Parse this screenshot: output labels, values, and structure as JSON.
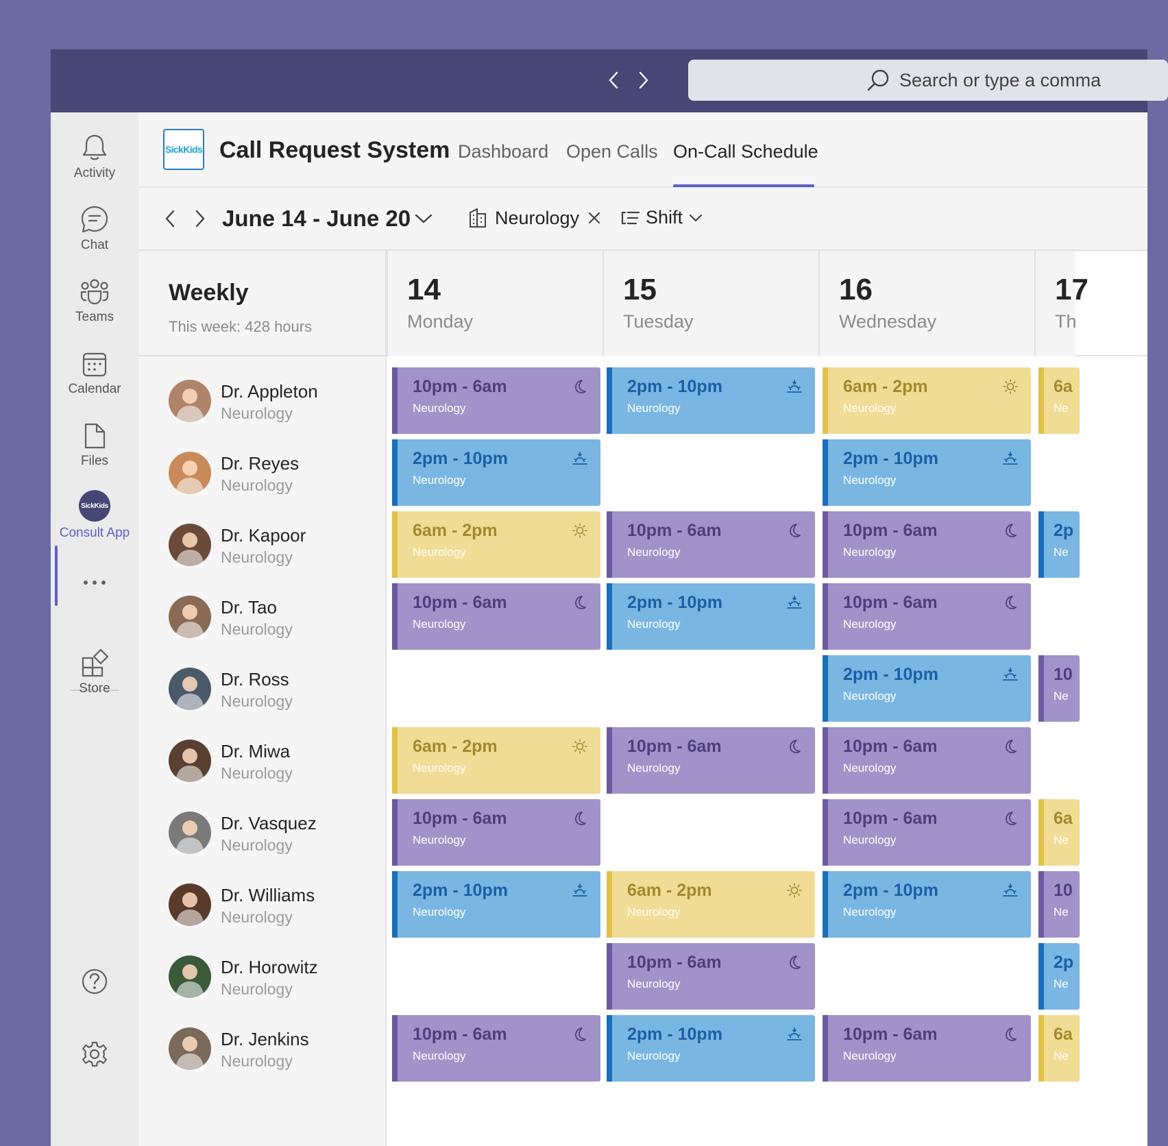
{
  "search": {
    "placeholder": "Search or type a comma"
  },
  "rail": {
    "items": [
      {
        "label": "Activity",
        "icon": "bell-icon"
      },
      {
        "label": "Chat",
        "icon": "chat-icon"
      },
      {
        "label": "Teams",
        "icon": "teams-icon"
      },
      {
        "label": "Calendar",
        "icon": "calendar-icon"
      },
      {
        "label": "Files",
        "icon": "file-icon"
      },
      {
        "label": "Consult App",
        "icon": "sickkids-icon",
        "badge": "SickKids"
      },
      {
        "label": "Store",
        "icon": "store-icon"
      }
    ]
  },
  "app": {
    "logo_text": "SickKids",
    "title": "Call Request System",
    "tabs": [
      {
        "label": "Dashboard"
      },
      {
        "label": "Open Calls"
      },
      {
        "label": "On-Call Schedule",
        "active": true
      }
    ]
  },
  "toolbar": {
    "date_range": "June 14 - June 20",
    "filter_department": "Neurology",
    "group_by": "Shift"
  },
  "grid": {
    "weekly_title": "Weekly",
    "weekly_subtitle": "This week: 428 hours",
    "days": [
      {
        "num": "14",
        "name": "Monday"
      },
      {
        "num": "15",
        "name": "Tuesday"
      },
      {
        "num": "16",
        "name": "Wednesday"
      },
      {
        "num": "17",
        "name": "Th"
      }
    ]
  },
  "people": [
    {
      "name": "Dr. Appleton",
      "dept": "Neurology",
      "avatar_color": "#b0846a",
      "shifts": [
        "night",
        "evening",
        "day",
        "day"
      ]
    },
    {
      "name": "Dr. Reyes",
      "dept": "Neurology",
      "avatar_color": "#c98a5a",
      "shifts": [
        "evening",
        "",
        "evening",
        ""
      ]
    },
    {
      "name": "Dr. Kapoor",
      "dept": "Neurology",
      "avatar_color": "#6b4a3a",
      "shifts": [
        "day",
        "night",
        "night",
        "evening"
      ]
    },
    {
      "name": "Dr. Tao",
      "dept": "Neurology",
      "avatar_color": "#8a6a55",
      "shifts": [
        "night",
        "evening",
        "night",
        ""
      ]
    },
    {
      "name": "Dr. Ross",
      "dept": "Neurology",
      "avatar_color": "#4a5a6a",
      "shifts": [
        "",
        "",
        "evening",
        "night"
      ]
    },
    {
      "name": "Dr. Miwa",
      "dept": "Neurology",
      "avatar_color": "#5a4030",
      "shifts": [
        "day",
        "night",
        "night",
        ""
      ]
    },
    {
      "name": "Dr. Vasquez",
      "dept": "Neurology",
      "avatar_color": "#7a7a7a",
      "shifts": [
        "night",
        "",
        "night",
        "day"
      ]
    },
    {
      "name": "Dr. Williams",
      "dept": "Neurology",
      "avatar_color": "#5a3a2a",
      "shifts": [
        "evening",
        "day",
        "evening",
        "night"
      ]
    },
    {
      "name": "Dr. Horowitz",
      "dept": "Neurology",
      "avatar_color": "#3a5a3a",
      "shifts": [
        "",
        "night",
        "",
        "evening"
      ]
    },
    {
      "name": "Dr. Jenkins",
      "dept": "Neurology",
      "avatar_color": "#7a6a5a",
      "shifts": [
        "night",
        "evening",
        "night",
        "day"
      ]
    }
  ],
  "shift_types": {
    "night": {
      "time": "10pm - 6am",
      "short": "10",
      "icon": "moon-icon"
    },
    "evening": {
      "time": "2pm - 10pm",
      "short": "2p",
      "icon": "sunset-icon"
    },
    "day": {
      "time": "6am - 2pm",
      "short": "6a",
      "icon": "sun-icon"
    }
  },
  "shift_dept": "Neurology",
  "shift_dept_short": "Ne"
}
